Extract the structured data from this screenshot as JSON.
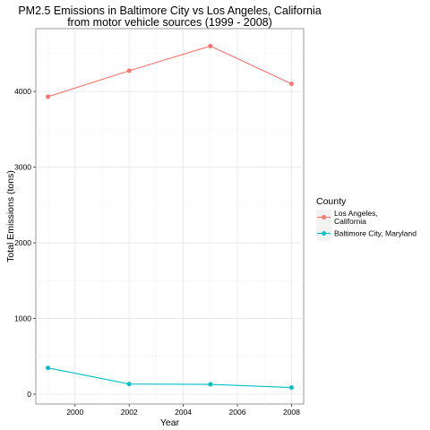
{
  "chart_data": {
    "type": "line",
    "title": [
      "PM2.5 Emissions in Baltimore City vs Los Angeles, California",
      "from motor vehicle sources (1999 - 2008)"
    ],
    "xlabel": "Year",
    "ylabel": "Total Emissions (tons)",
    "x": [
      1999,
      2002,
      2005,
      2008
    ],
    "xticks": [
      2000,
      2002,
      2004,
      2006,
      2008
    ],
    "yticks": [
      0,
      1000,
      2000,
      3000,
      4000
    ],
    "xlim": [
      1998.55,
      2008.45
    ],
    "ylim": [
      -130,
      4830
    ],
    "grid": true,
    "legend_position": "right",
    "legend_title": "County",
    "series": [
      {
        "name": [
          "Los Angeles,",
          "California"
        ],
        "color": "#f8766d",
        "values": [
          3931,
          4274,
          4601,
          4101
        ]
      },
      {
        "name": [
          "Baltimore City, Maryland"
        ],
        "color": "#00bfc4",
        "values": [
          347,
          134,
          130,
          88
        ]
      }
    ]
  }
}
